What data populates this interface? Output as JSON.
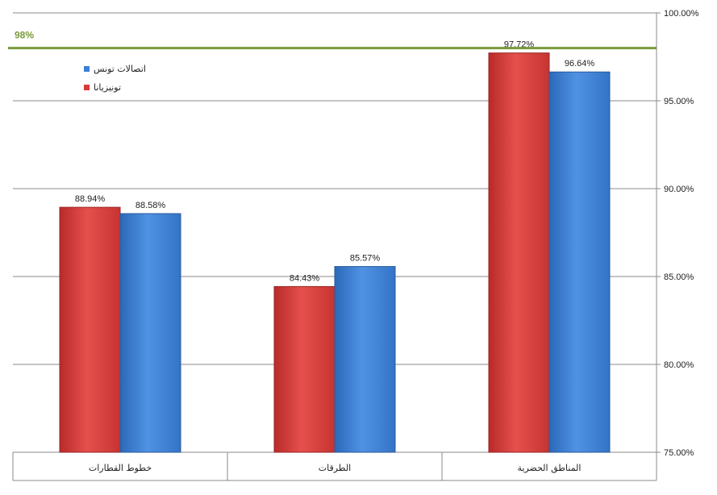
{
  "chart_data": {
    "type": "bar",
    "categories": [
      "خطوط القطارات",
      "الطرقات",
      "المناطق الحضرية"
    ],
    "series": [
      {
        "name": "تونيزيانا",
        "values": [
          88.94,
          84.43,
          97.72
        ],
        "labels": [
          "88.94%",
          "84.43%",
          "97.72%"
        ],
        "color": "#d83a38"
      },
      {
        "name": "اتصالات تونس",
        "values": [
          88.58,
          85.57,
          96.64
        ],
        "labels": [
          "88.58%",
          "85.57%",
          "96.64%"
        ],
        "color": "#3d7fd6"
      }
    ],
    "ylim": [
      75,
      100
    ],
    "ytick_values": [
      75,
      80,
      85,
      90,
      95,
      100
    ],
    "ytick_labels": [
      "75.00%",
      "80.00%",
      "85.00%",
      "90.00%",
      "95.00%",
      "100.00%"
    ],
    "y_axis_side": "right",
    "grid": true,
    "legend_position": "top-left",
    "target_line": {
      "value": 98,
      "label": "98%",
      "color": "#7a9a3a"
    },
    "title": "",
    "xlabel": "",
    "ylabel": ""
  }
}
